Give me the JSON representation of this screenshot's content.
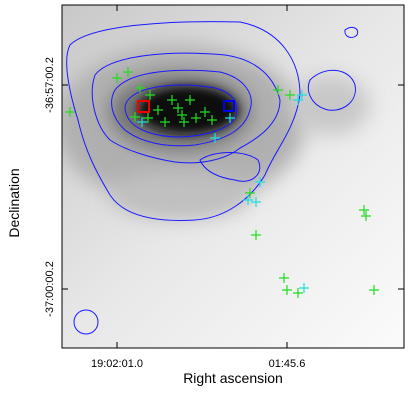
{
  "x_axis": {
    "label": "Right ascension",
    "ticks": [
      "19:02:01.0",
      "01:45.6"
    ]
  },
  "y_axis": {
    "label": "Declination",
    "ticks": [
      "-36:57:00.2",
      "-37:00:00.2"
    ]
  }
}
